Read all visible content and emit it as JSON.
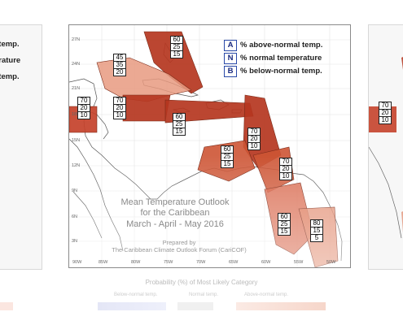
{
  "map": {
    "title_lines": [
      "Mean Temperature Outlook",
      "for the Caribbean",
      "March - April - May 2016"
    ],
    "prepared_lines": [
      "Prepared by",
      "The Caribbean Climate Outlook Forum (CariCOF)"
    ],
    "latitude_ticks": [
      "27N",
      "24N",
      "21N",
      "18N",
      "15N",
      "12N",
      "9N",
      "6N",
      "3N"
    ],
    "longitude_ticks": [
      "90W",
      "85W",
      "80W",
      "75W",
      "70W",
      "65W",
      "60W",
      "55W",
      "50W"
    ],
    "legend": [
      {
        "key": "A",
        "label": "% above-normal temp."
      },
      {
        "key": "N",
        "label": "% normal temperature"
      },
      {
        "key": "B",
        "label": "% below-normal temp."
      }
    ],
    "regions": [
      {
        "id": "bahamas",
        "values": [
          "60",
          "25",
          "15"
        ]
      },
      {
        "id": "cuba",
        "values": [
          "45",
          "35",
          "20"
        ]
      },
      {
        "id": "belize",
        "values": [
          "70",
          "20",
          "10"
        ]
      },
      {
        "id": "jamaica",
        "values": [
          "70",
          "20",
          "10"
        ]
      },
      {
        "id": "hispaniola",
        "values": [
          "60",
          "25",
          "15"
        ]
      },
      {
        "id": "eastern-caribbean",
        "values": [
          "70",
          "20",
          "10"
        ]
      },
      {
        "id": "south-caribbean",
        "values": [
          "60",
          "25",
          "15"
        ]
      },
      {
        "id": "windward",
        "values": [
          "70",
          "20",
          "10"
        ]
      },
      {
        "id": "guianas",
        "values": [
          "60",
          "25",
          "15"
        ]
      },
      {
        "id": "french-guiana",
        "values": [
          "80",
          "15",
          "5"
        ]
      }
    ],
    "colors": {
      "dark": "#b5361f",
      "mid": "#cd5434",
      "light": "#e79a80",
      "pale": "#f3c1b0"
    }
  },
  "left_panel": {
    "lines": [
      "l temp.",
      "erature",
      "l temp."
    ]
  },
  "right_panel": {
    "values": [
      "70",
      "20",
      "10"
    ]
  },
  "footer": {
    "title": "Probability (%) of Most Likely Category",
    "categories": [
      "Below-normal temp.",
      "Normal temp.",
      "Above-normal temp."
    ]
  }
}
